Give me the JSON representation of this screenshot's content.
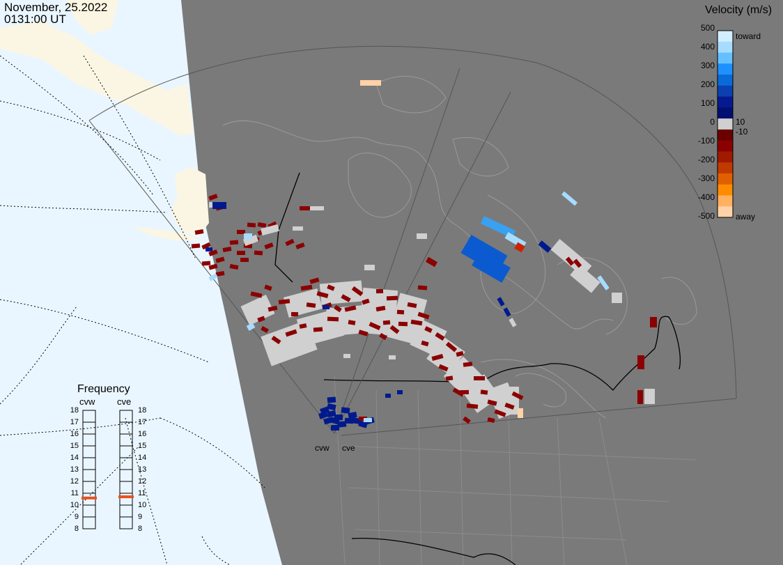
{
  "header": {
    "date": "November, 25.2022",
    "time": "0131:00 UT"
  },
  "colorbar": {
    "title": "Velocity (m/s)",
    "ticks": [
      500,
      400,
      300,
      200,
      100,
      0,
      -100,
      -200,
      -300,
      -400,
      -500
    ],
    "near_zero_labels": [
      "10",
      "-10"
    ],
    "toward_label": "toward",
    "away_label": "away",
    "colors": [
      "#d2efff",
      "#a6dcff",
      "#64c0ff",
      "#1e90ff",
      "#0a6ad8",
      "#0b40b0",
      "#061a90",
      "#001070",
      "#d0d0d0",
      "#6a0000",
      "#8b0000",
      "#a01a00",
      "#c03a00",
      "#e06000",
      "#ff8c00",
      "#ffb060",
      "#ffd2a8"
    ]
  },
  "frequency": {
    "title": "Frequency",
    "radars": [
      {
        "name": "cvw",
        "value": 10.6
      },
      {
        "name": "cve",
        "value": 10.7
      }
    ],
    "ticks": [
      18,
      17,
      16,
      15,
      14,
      13,
      12,
      11,
      10,
      9,
      8
    ],
    "marker_color": "#e8521c"
  },
  "sites": [
    {
      "name": "cvw"
    },
    {
      "name": "cve"
    }
  ],
  "colors": {
    "land": "#7a7a7a",
    "ocean": "#eaf6ff",
    "daylight_land": "#fbf6e3",
    "ground_scatter": "#d0d0d0",
    "coast": "#9a9a9a",
    "border": "#000000"
  }
}
